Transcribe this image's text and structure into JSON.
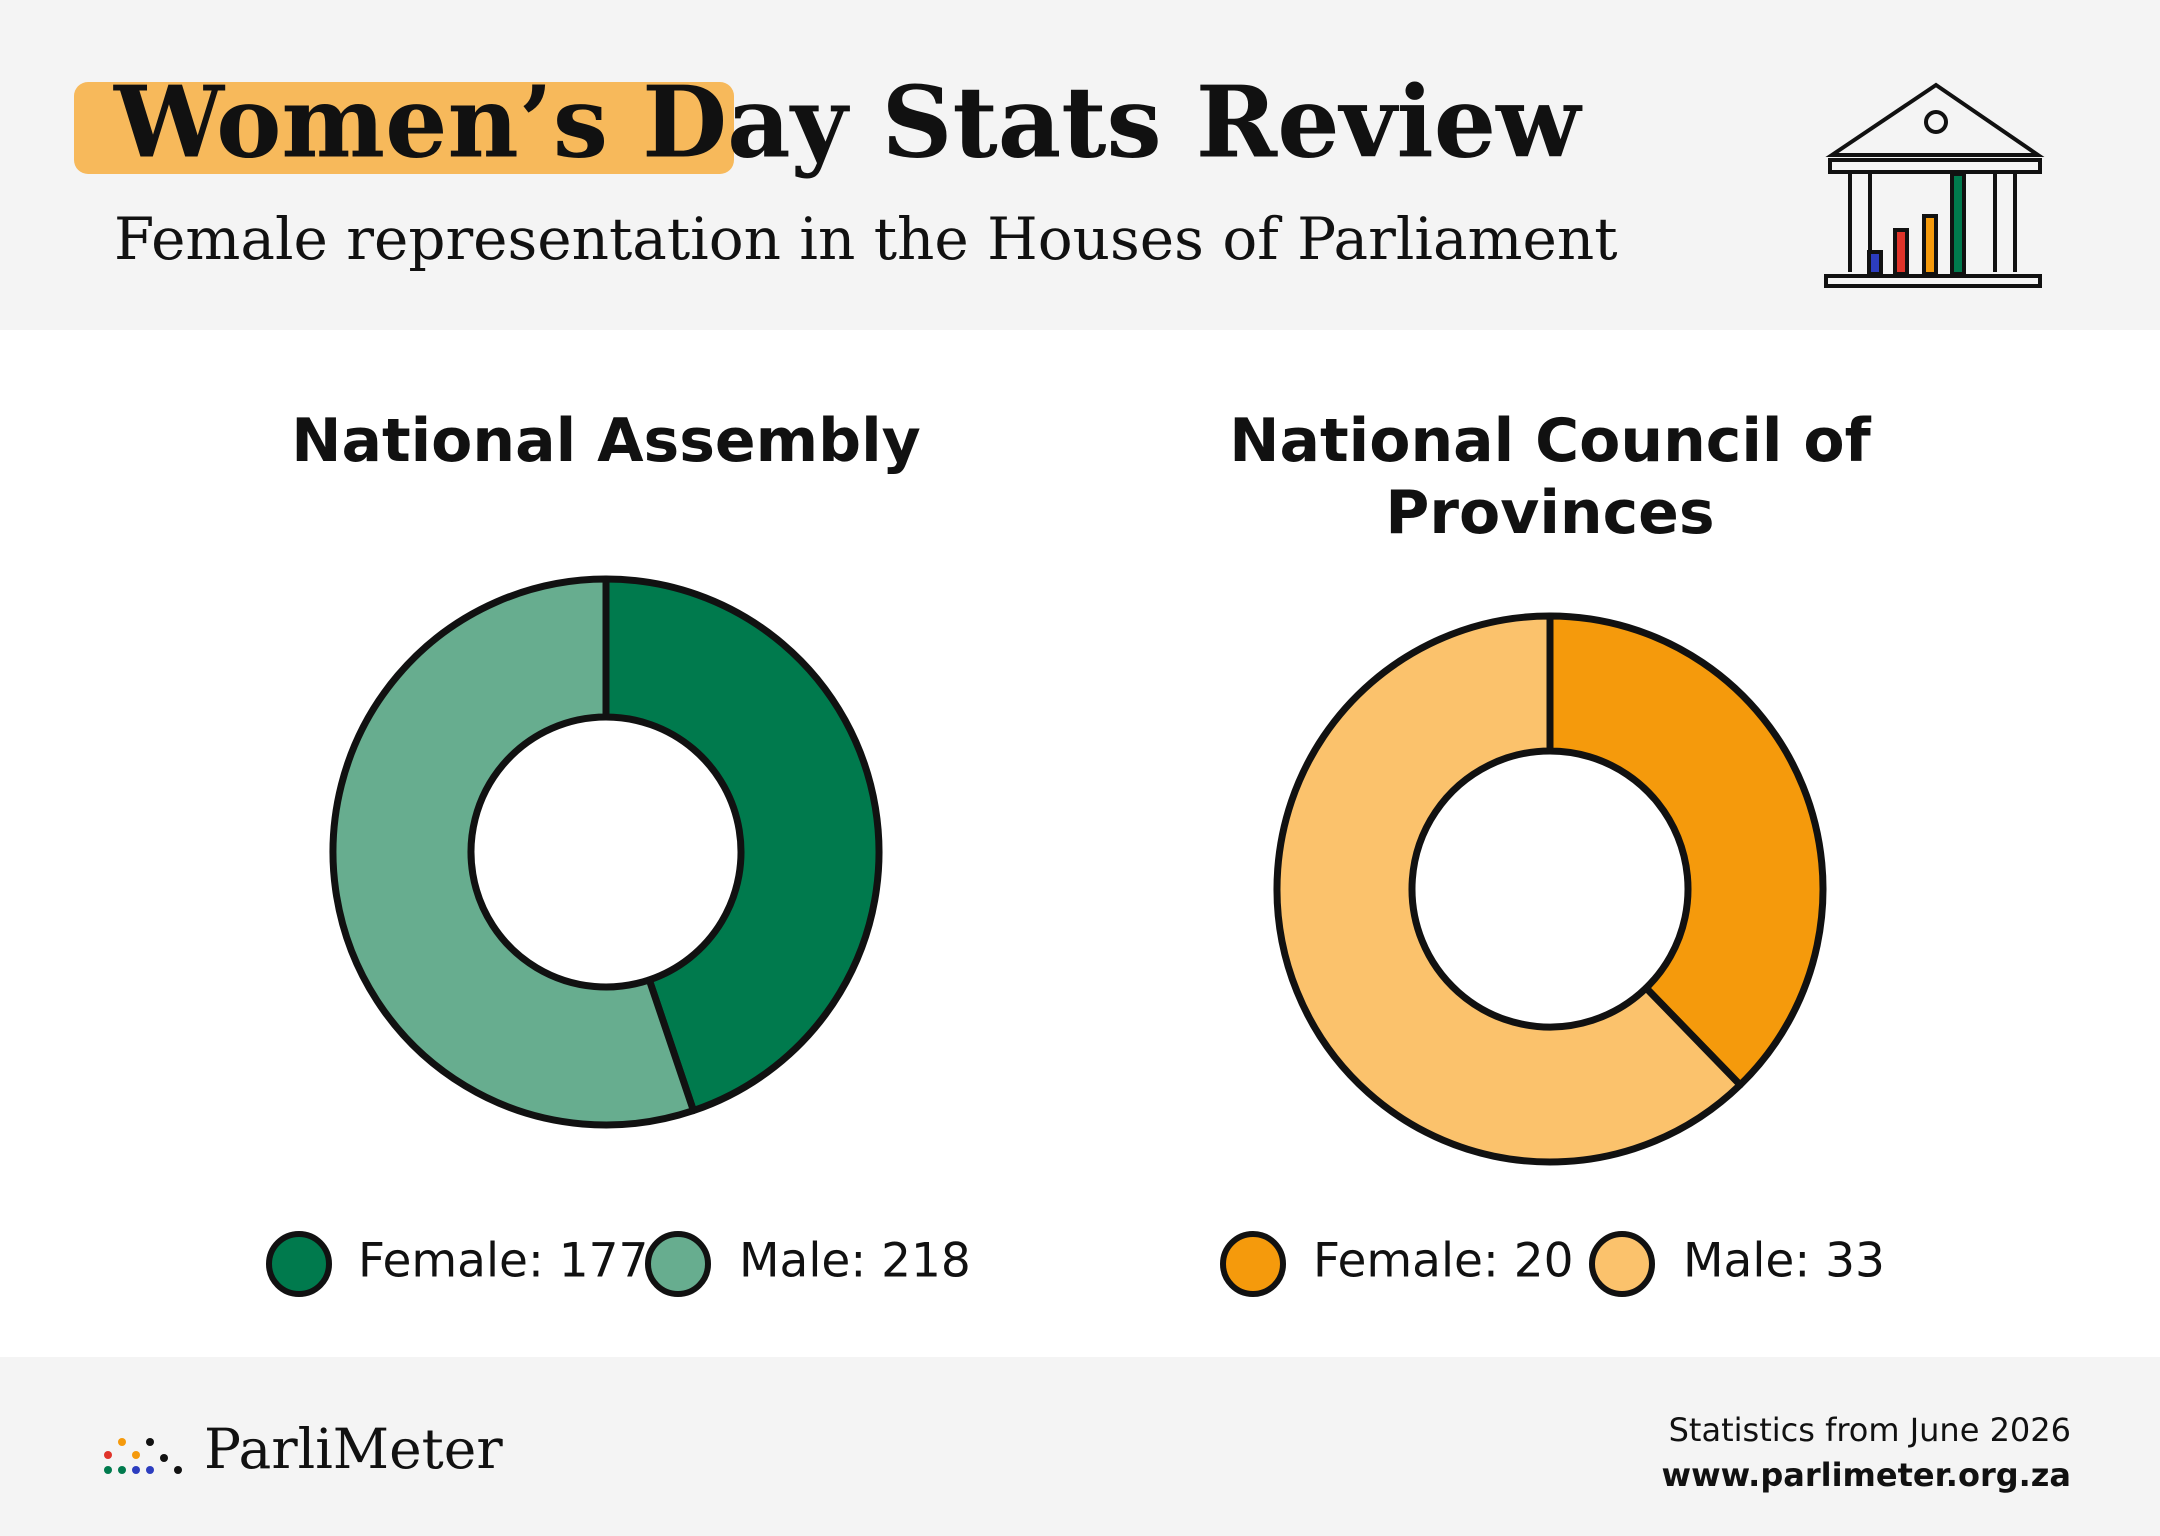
{
  "header": {
    "title": "Women’s Day Stats Review",
    "subtitle": "Female representation in the Houses of Parliament"
  },
  "chart_data": [
    {
      "type": "donut",
      "title": "National Assembly",
      "categories": [
        "Female: 177",
        "Male: 218"
      ],
      "values": [
        177,
        218
      ],
      "colors": [
        "#007a4d",
        "#67ad8f"
      ]
    },
    {
      "type": "donut",
      "title": "National Council of Provinces",
      "categories": [
        "Female: 20",
        "Male: 33"
      ],
      "values": [
        20,
        33
      ],
      "colors": [
        "#f59a0c",
        "#fbc26c"
      ]
    }
  ],
  "footer": {
    "brand": "ParliMeter",
    "source": "Statistics from June 2026",
    "url": "www.parlimeter.org.za"
  }
}
